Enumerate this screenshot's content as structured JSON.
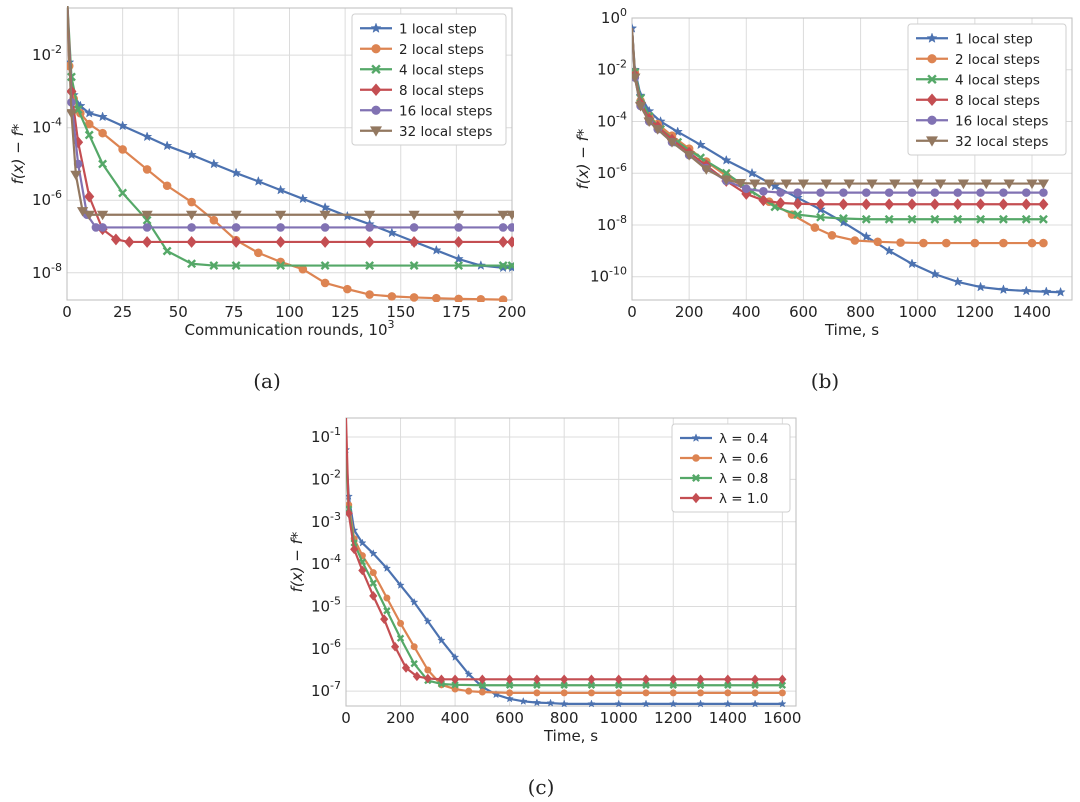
{
  "captions": [
    "(a)",
    "(b)",
    "(c)"
  ],
  "chart_data": [
    {
      "type": "line",
      "caption": "(a)",
      "xlabel": "Communication rounds, 10",
      "xlabel_sup": "3",
      "ylabel": "f(x) − f*",
      "xlim": [
        0,
        200
      ],
      "xticks": [
        0,
        25,
        50,
        75,
        100,
        125,
        150,
        175,
        200
      ],
      "ylim_log10": [
        -8.75,
        -0.7
      ],
      "yticks_exp": [
        -8,
        -6,
        -4,
        -2
      ],
      "grid": true,
      "legend_position": "top-right",
      "series": [
        {
          "name": "1 local step",
          "color": "#4c72b0",
          "marker": "star",
          "x": [
            0,
            1,
            3,
            6,
            10,
            16,
            25,
            36,
            45,
            56,
            66,
            76,
            86,
            96,
            106,
            116,
            126,
            136,
            146,
            156,
            166,
            176,
            186,
            196,
            200
          ],
          "y_log10": [
            -0.4,
            -2.2,
            -3.1,
            -3.4,
            -3.6,
            -3.7,
            -3.95,
            -4.25,
            -4.5,
            -4.75,
            -5.0,
            -5.25,
            -5.48,
            -5.72,
            -5.96,
            -6.2,
            -6.44,
            -6.66,
            -6.9,
            -7.14,
            -7.38,
            -7.62,
            -7.8,
            -7.86,
            -7.86
          ]
        },
        {
          "name": "2 local steps",
          "color": "#dd8452",
          "marker": "circle",
          "x": [
            0,
            1,
            3,
            6,
            10,
            16,
            25,
            36,
            45,
            56,
            66,
            76,
            86,
            96,
            106,
            116,
            126,
            136,
            146,
            156,
            166,
            176,
            186,
            196
          ],
          "y_log10": [
            -0.4,
            -2.3,
            -3.2,
            -3.6,
            -3.9,
            -4.15,
            -4.6,
            -5.15,
            -5.6,
            -6.05,
            -6.55,
            -7.1,
            -7.45,
            -7.7,
            -7.9,
            -8.28,
            -8.45,
            -8.6,
            -8.65,
            -8.68,
            -8.7,
            -8.72,
            -8.73,
            -8.74
          ]
        },
        {
          "name": "4 local steps",
          "color": "#55a868",
          "marker": "x",
          "x": [
            0,
            2,
            5,
            10,
            16,
            25,
            36,
            45,
            56,
            66,
            76,
            96,
            116,
            136,
            156,
            176,
            196,
            200
          ],
          "y_log10": [
            -0.4,
            -2.6,
            -3.5,
            -4.2,
            -5.0,
            -5.8,
            -6.55,
            -7.4,
            -7.75,
            -7.8,
            -7.8,
            -7.8,
            -7.8,
            -7.8,
            -7.8,
            -7.8,
            -7.8,
            -7.8
          ]
        },
        {
          "name": "8 local steps",
          "color": "#c44e52",
          "marker": "diamond",
          "x": [
            0,
            2,
            5,
            10,
            16,
            22,
            28,
            36,
            56,
            76,
            96,
            116,
            136,
            156,
            176,
            196,
            200
          ],
          "y_log10": [
            -0.4,
            -3.0,
            -4.4,
            -5.9,
            -6.8,
            -7.08,
            -7.15,
            -7.15,
            -7.15,
            -7.15,
            -7.15,
            -7.15,
            -7.15,
            -7.15,
            -7.15,
            -7.15,
            -7.15
          ]
        },
        {
          "name": "16 local steps",
          "color": "#8172b3",
          "marker": "circle",
          "x": [
            0,
            2,
            5,
            9,
            13,
            16,
            36,
            56,
            76,
            96,
            116,
            136,
            156,
            176,
            196,
            200
          ],
          "y_log10": [
            -0.4,
            -3.3,
            -5.0,
            -6.4,
            -6.75,
            -6.75,
            -6.75,
            -6.75,
            -6.75,
            -6.75,
            -6.75,
            -6.75,
            -6.75,
            -6.75,
            -6.75,
            -6.75
          ]
        },
        {
          "name": "32 local steps",
          "color": "#937860",
          "marker": "triangle-down",
          "x": [
            0,
            2,
            4,
            7,
            10,
            16,
            36,
            56,
            76,
            96,
            116,
            136,
            156,
            176,
            196,
            200
          ],
          "y_log10": [
            -0.4,
            -3.6,
            -5.3,
            -6.3,
            -6.4,
            -6.4,
            -6.4,
            -6.4,
            -6.4,
            -6.4,
            -6.4,
            -6.4,
            -6.4,
            -6.4,
            -6.4,
            -6.4
          ]
        }
      ]
    },
    {
      "type": "line",
      "caption": "(b)",
      "xlabel": "Time, s",
      "ylabel": "f(x) − f*",
      "xlim": [
        0,
        1540
      ],
      "xticks": [
        0,
        200,
        400,
        600,
        800,
        1000,
        1200,
        1400
      ],
      "ylim_log10": [
        -10.9,
        0
      ],
      "yticks_exp": [
        -10,
        -8,
        -6,
        -4,
        -2,
        0
      ],
      "grid": true,
      "legend_position": "top-right",
      "series": [
        {
          "name": "1 local step",
          "color": "#4c72b0",
          "marker": "star",
          "x": [
            0,
            10,
            30,
            60,
            100,
            160,
            240,
            330,
            420,
            500,
            580,
            660,
            740,
            820,
            900,
            980,
            1060,
            1140,
            1220,
            1300,
            1380,
            1450,
            1500
          ],
          "y_log10": [
            -0.4,
            -2.0,
            -3.0,
            -3.6,
            -4.0,
            -4.4,
            -4.9,
            -5.5,
            -6.0,
            -6.5,
            -6.95,
            -7.4,
            -7.9,
            -8.45,
            -9.0,
            -9.5,
            -9.9,
            -10.2,
            -10.4,
            -10.5,
            -10.55,
            -10.58,
            -10.6
          ]
        },
        {
          "name": "2 local steps",
          "color": "#dd8452",
          "marker": "circle",
          "x": [
            0,
            10,
            30,
            60,
            90,
            140,
            200,
            260,
            330,
            400,
            480,
            560,
            640,
            700,
            780,
            860,
            940,
            1020,
            1100,
            1200,
            1300,
            1400,
            1440
          ],
          "y_log10": [
            -0.4,
            -2.1,
            -3.2,
            -3.8,
            -4.1,
            -4.55,
            -5.05,
            -5.55,
            -6.1,
            -6.6,
            -7.1,
            -7.6,
            -8.1,
            -8.4,
            -8.6,
            -8.65,
            -8.68,
            -8.7,
            -8.7,
            -8.7,
            -8.7,
            -8.7,
            -8.7
          ]
        },
        {
          "name": "4 local steps",
          "color": "#55a868",
          "marker": "x",
          "x": [
            0,
            10,
            30,
            60,
            100,
            160,
            240,
            330,
            420,
            500,
            580,
            660,
            740,
            820,
            900,
            980,
            1060,
            1140,
            1220,
            1300,
            1380,
            1440
          ],
          "y_log10": [
            -0.4,
            -2.1,
            -3.1,
            -3.8,
            -4.3,
            -4.8,
            -5.4,
            -6.0,
            -6.7,
            -7.3,
            -7.6,
            -7.7,
            -7.75,
            -7.78,
            -7.78,
            -7.78,
            -7.78,
            -7.78,
            -7.78,
            -7.78,
            -7.78,
            -7.78
          ]
        },
        {
          "name": "8 local steps",
          "color": "#c44e52",
          "marker": "diamond",
          "x": [
            0,
            10,
            30,
            60,
            90,
            140,
            200,
            260,
            330,
            400,
            460,
            520,
            580,
            660,
            740,
            820,
            900,
            980,
            1060,
            1140,
            1220,
            1300,
            1380,
            1440
          ],
          "y_log10": [
            -0.4,
            -2.2,
            -3.3,
            -3.9,
            -4.2,
            -4.7,
            -5.2,
            -5.7,
            -6.3,
            -6.8,
            -7.05,
            -7.15,
            -7.18,
            -7.2,
            -7.2,
            -7.2,
            -7.2,
            -7.2,
            -7.2,
            -7.2,
            -7.2,
            -7.2,
            -7.2,
            -7.2
          ]
        },
        {
          "name": "16 local steps",
          "color": "#8172b3",
          "marker": "circle",
          "x": [
            0,
            10,
            30,
            60,
            90,
            140,
            200,
            260,
            330,
            400,
            460,
            520,
            580,
            660,
            740,
            820,
            900,
            980,
            1060,
            1140,
            1220,
            1300,
            1380,
            1440
          ],
          "y_log10": [
            -0.4,
            -2.3,
            -3.4,
            -4.0,
            -4.3,
            -4.8,
            -5.3,
            -5.8,
            -6.3,
            -6.6,
            -6.7,
            -6.75,
            -6.75,
            -6.75,
            -6.75,
            -6.75,
            -6.75,
            -6.75,
            -6.75,
            -6.75,
            -6.75,
            -6.75,
            -6.75,
            -6.75
          ]
        },
        {
          "name": "32 local steps",
          "color": "#937860",
          "marker": "triangle-down",
          "x": [
            0,
            10,
            30,
            60,
            90,
            140,
            200,
            260,
            330,
            380,
            430,
            480,
            540,
            600,
            680,
            760,
            840,
            920,
            1000,
            1080,
            1160,
            1240,
            1320,
            1400,
            1440
          ],
          "y_log10": [
            -0.4,
            -2.3,
            -3.4,
            -4.0,
            -4.3,
            -4.8,
            -5.3,
            -5.85,
            -6.25,
            -6.38,
            -6.4,
            -6.4,
            -6.4,
            -6.4,
            -6.4,
            -6.4,
            -6.4,
            -6.4,
            -6.4,
            -6.4,
            -6.4,
            -6.4,
            -6.4,
            -6.4,
            -6.4
          ]
        }
      ]
    },
    {
      "type": "line",
      "caption": "(c)",
      "xlabel": "Time, s",
      "ylabel": "f(x) − f*",
      "xlim": [
        0,
        1650
      ],
      "xticks": [
        0,
        200,
        400,
        600,
        800,
        1000,
        1200,
        1400,
        1600
      ],
      "ylim_log10": [
        -7.35,
        -0.55
      ],
      "yticks_exp": [
        -7,
        -6,
        -5,
        -4,
        -3,
        -2,
        -1
      ],
      "grid": true,
      "legend_position": "top-right",
      "series": [
        {
          "name": "λ = 0.4",
          "color": "#4c72b0",
          "marker": "star",
          "x": [
            0,
            10,
            30,
            60,
            100,
            150,
            200,
            250,
            300,
            350,
            400,
            450,
            500,
            550,
            600,
            650,
            700,
            750,
            800,
            900,
            1000,
            1100,
            1200,
            1300,
            1400,
            1500,
            1600
          ],
          "y_log10": [
            -1.3,
            -2.4,
            -3.2,
            -3.5,
            -3.75,
            -4.1,
            -4.5,
            -4.9,
            -5.35,
            -5.8,
            -6.2,
            -6.6,
            -6.9,
            -7.08,
            -7.18,
            -7.24,
            -7.27,
            -7.28,
            -7.3,
            -7.3,
            -7.3,
            -7.3,
            -7.3,
            -7.3,
            -7.3,
            -7.3,
            -7.3
          ]
        },
        {
          "name": "λ = 0.6",
          "color": "#dd8452",
          "marker": "circle",
          "x": [
            0,
            10,
            30,
            60,
            100,
            150,
            200,
            250,
            300,
            350,
            400,
            450,
            500,
            600,
            700,
            800,
            900,
            1000,
            1100,
            1200,
            1300,
            1400,
            1500,
            1600
          ],
          "y_log10": [
            -1.4,
            -2.6,
            -3.4,
            -3.8,
            -4.2,
            -4.8,
            -5.4,
            -5.95,
            -6.5,
            -6.85,
            -6.95,
            -7.0,
            -7.02,
            -7.04,
            -7.04,
            -7.04,
            -7.04,
            -7.04,
            -7.04,
            -7.04,
            -7.04,
            -7.04,
            -7.04,
            -7.04
          ]
        },
        {
          "name": "λ = 0.8",
          "color": "#55a868",
          "marker": "x",
          "x": [
            0,
            10,
            30,
            60,
            100,
            150,
            200,
            250,
            300,
            350,
            400,
            500,
            600,
            700,
            800,
            900,
            1000,
            1100,
            1200,
            1300,
            1400,
            1500,
            1600
          ],
          "y_log10": [
            -1.45,
            -2.7,
            -3.5,
            -3.95,
            -4.45,
            -5.1,
            -5.75,
            -6.35,
            -6.75,
            -6.83,
            -6.85,
            -6.86,
            -6.86,
            -6.86,
            -6.86,
            -6.86,
            -6.86,
            -6.86,
            -6.86,
            -6.86,
            -6.86,
            -6.86,
            -6.86
          ]
        },
        {
          "name": "λ = 1.0",
          "color": "#c44e52",
          "marker": "diamond",
          "x": [
            0,
            10,
            30,
            60,
            100,
            140,
            180,
            220,
            260,
            300,
            350,
            400,
            500,
            600,
            700,
            800,
            900,
            1000,
            1100,
            1200,
            1300,
            1400,
            1500,
            1600
          ],
          "y_log10": [
            -0.55,
            -2.8,
            -3.65,
            -4.15,
            -4.75,
            -5.3,
            -5.95,
            -6.45,
            -6.65,
            -6.7,
            -6.72,
            -6.72,
            -6.72,
            -6.72,
            -6.72,
            -6.72,
            -6.72,
            -6.72,
            -6.72,
            -6.72,
            -6.72,
            -6.72,
            -6.72,
            -6.72
          ]
        }
      ]
    }
  ]
}
